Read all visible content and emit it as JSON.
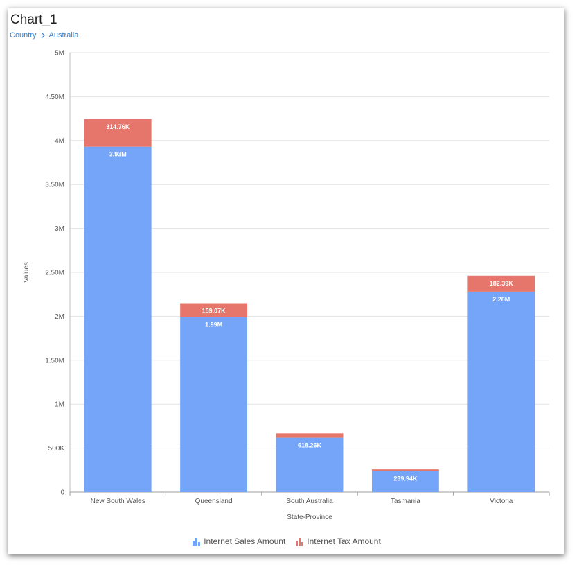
{
  "header": {
    "title": "Chart_1"
  },
  "breadcrumb": {
    "items": [
      "Country",
      "Australia"
    ]
  },
  "colors": {
    "sales": "#75a5f9",
    "tax": "#e6766b",
    "grid": "#e3e3e3",
    "breadcrumb": "#2f80d1"
  },
  "chart_data": {
    "type": "bar",
    "stacked": true,
    "categories": [
      "New South Wales",
      "Queensland",
      "South Australia",
      "Tasmania",
      "Victoria"
    ],
    "series": [
      {
        "name": "Internet Sales Amount",
        "values": [
          3930000,
          1990000,
          618260,
          239940,
          2280000
        ],
        "labels": [
          "3.93M",
          "1.99M",
          "618.26K",
          "239.94K",
          "2.28M"
        ]
      },
      {
        "name": "Internet Tax Amount",
        "values": [
          314760,
          159070,
          49460,
          19200,
          182390
        ],
        "labels": [
          "314.76K",
          "159.07K",
          "",
          "",
          "182.39K"
        ]
      }
    ],
    "xlabel": "State-Province",
    "ylabel": "Values",
    "ylim": [
      0,
      5000000
    ],
    "yticks": [
      0,
      500000,
      1000000,
      1500000,
      2000000,
      2500000,
      3000000,
      3500000,
      4000000,
      4500000,
      5000000
    ],
    "ytick_labels": [
      "0",
      "500K",
      "1M",
      "1.50M",
      "2M",
      "2.50M",
      "3M",
      "3.50M",
      "4M",
      "4.50M",
      "5M"
    ],
    "grid": true,
    "legend_position": "bottom"
  }
}
